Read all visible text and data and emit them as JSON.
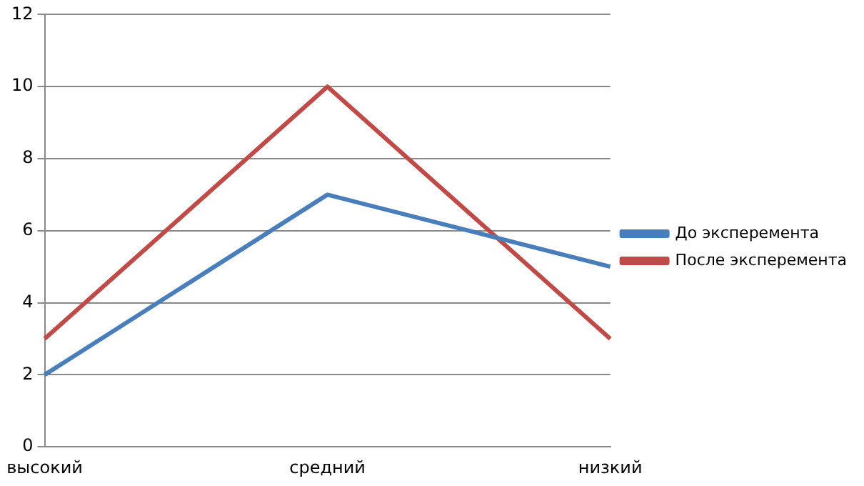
{
  "chart_data": {
    "type": "line",
    "categories": [
      "высокий",
      "средний",
      "низкий"
    ],
    "series": [
      {
        "name": "До эксперемента",
        "color": "#4a7ebb",
        "values": [
          2,
          7,
          5
        ]
      },
      {
        "name": "После эксперемента",
        "color": "#be4b48",
        "values": [
          3,
          10,
          3
        ]
      }
    ],
    "ylim": [
      0,
      12
    ],
    "yticks": [
      0,
      2,
      4,
      6,
      8,
      10,
      12
    ],
    "grid": "y",
    "legend": "right",
    "marker": "none",
    "line_style": "solid"
  }
}
